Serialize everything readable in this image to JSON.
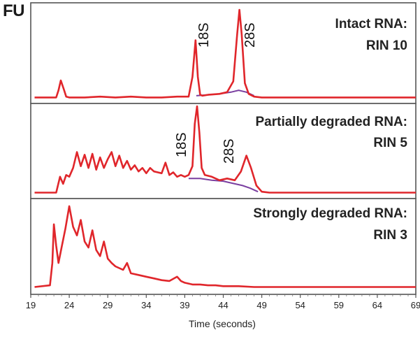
{
  "y_axis_label": "FU",
  "chart_data": {
    "type": "line",
    "xlabel": "Time (seconds)",
    "ylabel": "FU",
    "xlim": [
      19,
      69
    ],
    "x_ticks": [
      "19",
      "24",
      "29",
      "34",
      "39",
      "44",
      "49",
      "54",
      "59",
      "64",
      "69"
    ],
    "grid": false,
    "colors": {
      "trace": "#e0262b",
      "baseline": "#7a3fa0"
    },
    "panels": [
      {
        "label_line1": "Intact RNA:",
        "label_line2": "RIN 10",
        "annotations": [
          {
            "text": "18S",
            "x": 40.5
          },
          {
            "text": "28S",
            "x": 46.5
          }
        ],
        "series": [
          {
            "x": [
              19.5,
              22.3,
              22.6,
              22.9,
              23.3,
              23.6,
              24,
              26,
              28,
              30,
              32,
              34,
              36,
              38,
              39.5,
              40.0,
              40.4,
              40.7,
              41.0,
              41.3,
              42,
              43.5,
              44.5,
              45.3,
              45.8,
              46.1,
              46.4,
              46.8,
              47.3,
              48,
              49,
              52,
              56,
              60,
              64,
              69
            ],
            "y": [
              0.02,
              0.02,
              0.1,
              0.21,
              0.11,
              0.03,
              0.02,
              0.02,
              0.03,
              0.02,
              0.03,
              0.02,
              0.02,
              0.03,
              0.03,
              0.25,
              0.66,
              0.25,
              0.05,
              0.04,
              0.05,
              0.06,
              0.08,
              0.2,
              0.72,
              1.0,
              0.72,
              0.18,
              0.06,
              0.03,
              0.02,
              0.02,
              0.02,
              0.02,
              0.02,
              0.02
            ]
          },
          {
            "x": [
              40.5,
              42,
              43.5,
              45,
              46,
              47,
              48
            ],
            "y": [
              0.04,
              0.05,
              0.06,
              0.08,
              0.1,
              0.08,
              0.04
            ]
          }
        ]
      },
      {
        "label_line1": "Partially degraded RNA:",
        "label_line2": "RIN 5",
        "annotations": [
          {
            "text": "18S",
            "x": 40
          },
          {
            "text": "28S",
            "x": 45.5
          }
        ],
        "series": [
          {
            "x": [
              19.5,
              22.3,
              22.8,
              23.2,
              23.6,
              24.0,
              24.5,
              25.0,
              25.5,
              26.0,
              26.5,
              27.0,
              27.5,
              28.0,
              28.5,
              29.0,
              29.5,
              30.0,
              30.5,
              31.0,
              31.5,
              32.0,
              32.5,
              33.0,
              33.5,
              34.0,
              34.5,
              35.0,
              35.5,
              36.0,
              36.5,
              37.0,
              37.5,
              38.0,
              38.5,
              39.0,
              39.5,
              40.0,
              40.3,
              40.6,
              40.9,
              41.2,
              41.6,
              42.5,
              43.5,
              44.5,
              45.5,
              46.3,
              47.0,
              47.6,
              48.3,
              49.0,
              50,
              54,
              58,
              62,
              66,
              69
            ],
            "y": [
              0.02,
              0.02,
              0.2,
              0.12,
              0.22,
              0.2,
              0.3,
              0.48,
              0.32,
              0.45,
              0.3,
              0.46,
              0.28,
              0.42,
              0.3,
              0.4,
              0.48,
              0.32,
              0.44,
              0.3,
              0.38,
              0.28,
              0.33,
              0.26,
              0.3,
              0.24,
              0.3,
              0.26,
              0.25,
              0.24,
              0.36,
              0.22,
              0.25,
              0.2,
              0.22,
              0.2,
              0.22,
              0.32,
              0.8,
              1.0,
              0.7,
              0.3,
              0.22,
              0.2,
              0.16,
              0.18,
              0.16,
              0.26,
              0.44,
              0.3,
              0.1,
              0.03,
              0.02,
              0.02,
              0.02,
              0.02,
              0.02,
              0.02
            ]
          },
          {
            "x": [
              39.5,
              41,
              42.5,
              44,
              45.5,
              46.5,
              47.5,
              48.5
            ],
            "y": [
              0.18,
              0.18,
              0.16,
              0.15,
              0.12,
              0.1,
              0.07,
              0.03
            ]
          }
        ]
      },
      {
        "label_line1": "Strongly degraded RNA:",
        "label_line2": "RIN 3",
        "annotations": [],
        "series": [
          {
            "x": [
              19.5,
              21.5,
              21.8,
              22.0,
              22.3,
              22.6,
              23.0,
              23.5,
              24.0,
              24.5,
              25.0,
              25.5,
              26.0,
              26.5,
              27.0,
              27.5,
              28.0,
              28.5,
              29.0,
              29.5,
              30.0,
              30.5,
              31.0,
              31.5,
              32.0,
              33.0,
              34.0,
              35.0,
              36.0,
              37.0,
              38.0,
              38.5,
              39.0,
              40.0,
              41.0,
              42.0,
              43.0,
              44.0,
              46.0,
              48.0,
              50.0,
              54.0,
              58.0,
              62.0,
              66.0,
              69.0
            ],
            "y": [
              0.02,
              0.04,
              0.3,
              0.75,
              0.5,
              0.3,
              0.48,
              0.7,
              0.96,
              0.72,
              0.62,
              0.8,
              0.55,
              0.48,
              0.68,
              0.45,
              0.38,
              0.55,
              0.35,
              0.3,
              0.26,
              0.24,
              0.22,
              0.3,
              0.18,
              0.16,
              0.14,
              0.12,
              0.1,
              0.09,
              0.14,
              0.09,
              0.07,
              0.05,
              0.05,
              0.04,
              0.04,
              0.03,
              0.03,
              0.02,
              0.02,
              0.02,
              0.02,
              0.02,
              0.02,
              0.02
            ]
          }
        ]
      }
    ]
  }
}
